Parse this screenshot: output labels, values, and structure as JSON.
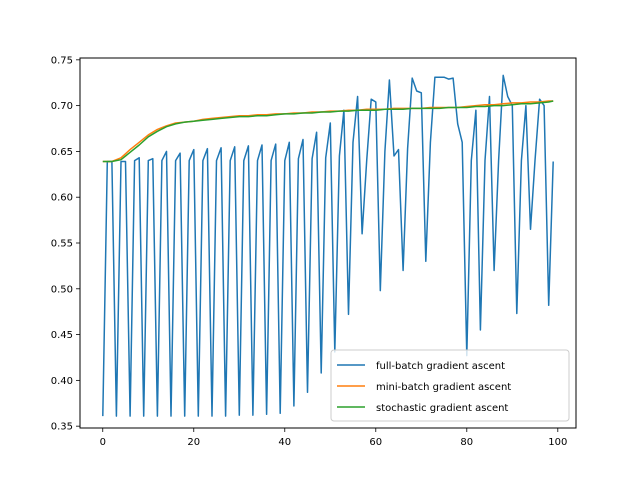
{
  "chart_data": {
    "type": "line",
    "title": "",
    "xlabel": "",
    "ylabel": "",
    "xlim": [
      -5,
      104
    ],
    "ylim": [
      0.348,
      0.752
    ],
    "x_ticks": [
      0,
      20,
      40,
      60,
      80,
      100
    ],
    "x_tick_labels": [
      "0",
      "20",
      "40",
      "60",
      "80",
      "100"
    ],
    "y_ticks": [
      0.35,
      0.4,
      0.45,
      0.5,
      0.55,
      0.6,
      0.65,
      0.7,
      0.75
    ],
    "y_tick_labels": [
      "0.35",
      "0.40",
      "0.45",
      "0.50",
      "0.55",
      "0.60",
      "0.65",
      "0.70",
      "0.75"
    ],
    "grid": false,
    "legend_position": "lower-right",
    "series": [
      {
        "name": "full-batch gradient ascent",
        "color": "#1f77b4",
        "x": [
          0,
          1,
          2,
          3,
          4,
          5,
          6,
          7,
          8,
          9,
          10,
          11,
          12,
          13,
          14,
          15,
          16,
          17,
          18,
          19,
          20,
          21,
          22,
          23,
          24,
          25,
          26,
          27,
          28,
          29,
          30,
          31,
          32,
          33,
          34,
          35,
          36,
          37,
          38,
          39,
          40,
          41,
          42,
          43,
          44,
          45,
          46,
          47,
          48,
          49,
          50,
          51,
          52,
          53,
          54,
          55,
          56,
          57,
          58,
          59,
          60,
          61,
          62,
          63,
          64,
          65,
          66,
          67,
          68,
          69,
          70,
          71,
          72,
          73,
          74,
          75,
          76,
          77,
          78,
          79,
          80,
          81,
          82,
          83,
          84,
          85,
          86,
          87,
          88,
          89,
          90,
          91,
          92,
          93,
          94,
          95,
          96,
          97,
          98,
          99
        ],
        "values": [
          0.361,
          0.639,
          0.639,
          0.361,
          0.639,
          0.639,
          0.361,
          0.64,
          0.643,
          0.361,
          0.64,
          0.642,
          0.361,
          0.64,
          0.65,
          0.361,
          0.64,
          0.648,
          0.361,
          0.64,
          0.652,
          0.361,
          0.64,
          0.653,
          0.361,
          0.64,
          0.654,
          0.361,
          0.64,
          0.655,
          0.362,
          0.64,
          0.656,
          0.362,
          0.64,
          0.657,
          0.363,
          0.64,
          0.658,
          0.364,
          0.64,
          0.66,
          0.372,
          0.642,
          0.663,
          0.387,
          0.642,
          0.671,
          0.408,
          0.643,
          0.681,
          0.431,
          0.645,
          0.695,
          0.472,
          0.66,
          0.71,
          0.56,
          0.64,
          0.707,
          0.704,
          0.498,
          0.65,
          0.728,
          0.645,
          0.652,
          0.52,
          0.653,
          0.73,
          0.716,
          0.714,
          0.53,
          0.66,
          0.731,
          0.731,
          0.731,
          0.729,
          0.73,
          0.68,
          0.66,
          0.427,
          0.64,
          0.695,
          0.455,
          0.64,
          0.71,
          0.52,
          0.64,
          0.733,
          0.71,
          0.7,
          0.473,
          0.64,
          0.7,
          0.565,
          0.64,
          0.707,
          0.7,
          0.482,
          0.639
        ]
      },
      {
        "name": "mini-batch gradient ascent",
        "color": "#ff7f0e",
        "x": [
          0,
          2,
          4,
          6,
          8,
          10,
          12,
          14,
          16,
          18,
          20,
          22,
          24,
          26,
          28,
          30,
          32,
          34,
          36,
          38,
          40,
          42,
          44,
          46,
          48,
          50,
          52,
          54,
          56,
          58,
          60,
          62,
          64,
          66,
          68,
          70,
          72,
          74,
          76,
          78,
          80,
          82,
          84,
          86,
          88,
          90,
          92,
          94,
          96,
          98,
          99
        ],
        "values": [
          0.639,
          0.639,
          0.643,
          0.652,
          0.66,
          0.668,
          0.674,
          0.678,
          0.681,
          0.682,
          0.683,
          0.685,
          0.686,
          0.687,
          0.688,
          0.689,
          0.689,
          0.69,
          0.69,
          0.691,
          0.691,
          0.692,
          0.692,
          0.693,
          0.693,
          0.694,
          0.694,
          0.695,
          0.695,
          0.696,
          0.696,
          0.696,
          0.697,
          0.697,
          0.697,
          0.697,
          0.698,
          0.698,
          0.698,
          0.698,
          0.699,
          0.7,
          0.701,
          0.701,
          0.702,
          0.703,
          0.703,
          0.704,
          0.704,
          0.705,
          0.705
        ]
      },
      {
        "name": "stochastic gradient ascent",
        "color": "#2ca02c",
        "x": [
          0,
          2,
          4,
          6,
          8,
          10,
          12,
          14,
          16,
          18,
          20,
          22,
          24,
          26,
          28,
          30,
          32,
          34,
          36,
          38,
          40,
          42,
          44,
          46,
          48,
          50,
          52,
          54,
          56,
          58,
          60,
          62,
          64,
          66,
          68,
          70,
          72,
          74,
          76,
          78,
          80,
          82,
          84,
          86,
          88,
          90,
          92,
          94,
          96,
          98,
          99
        ],
        "values": [
          0.639,
          0.639,
          0.641,
          0.649,
          0.657,
          0.666,
          0.672,
          0.677,
          0.68,
          0.682,
          0.683,
          0.684,
          0.685,
          0.686,
          0.687,
          0.688,
          0.688,
          0.689,
          0.689,
          0.69,
          0.691,
          0.691,
          0.692,
          0.692,
          0.693,
          0.693,
          0.694,
          0.694,
          0.695,
          0.695,
          0.695,
          0.696,
          0.696,
          0.696,
          0.697,
          0.697,
          0.697,
          0.697,
          0.698,
          0.698,
          0.698,
          0.699,
          0.699,
          0.7,
          0.7,
          0.701,
          0.702,
          0.702,
          0.703,
          0.704,
          0.705
        ]
      }
    ]
  }
}
